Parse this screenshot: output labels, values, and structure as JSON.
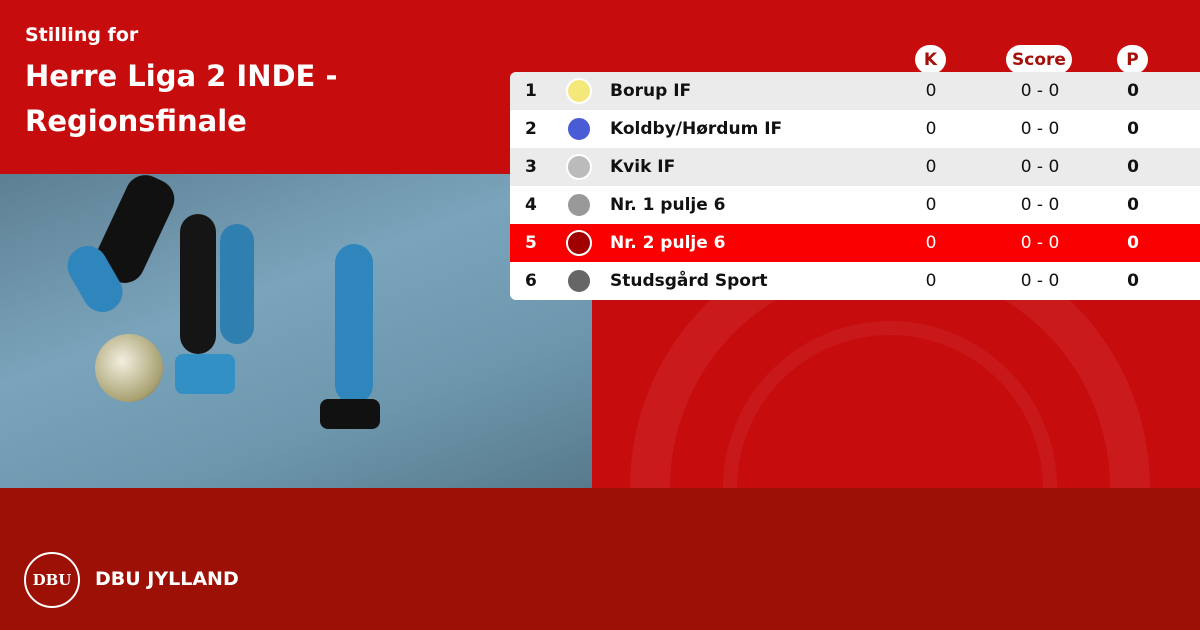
{
  "header": {
    "subtitle": "Stilling for",
    "title": "Herre Liga 2 INDE - Regionsfinale"
  },
  "columns": {
    "k": "K",
    "score": "Score",
    "p": "P"
  },
  "rows": [
    {
      "pos": "1",
      "team": "Borup IF",
      "k": "0",
      "score": "0 - 0",
      "p": "0",
      "logo_color": "#f4e87a"
    },
    {
      "pos": "2",
      "team": "Koldby/Hørdum IF",
      "k": "0",
      "score": "0 - 0",
      "p": "0",
      "logo_color": "#4a5bd6"
    },
    {
      "pos": "3",
      "team": "Kvik IF",
      "k": "0",
      "score": "0 - 0",
      "p": "0",
      "logo_color": "#bbbbbb"
    },
    {
      "pos": "4",
      "team": "Nr. 1 pulje 6",
      "k": "0",
      "score": "0 - 0",
      "p": "0",
      "logo_color": "#999999"
    },
    {
      "pos": "5",
      "team": "Nr. 2 pulje 6",
      "k": "0",
      "score": "0 - 0",
      "p": "0",
      "logo_color": "#a00000",
      "highlighted": true
    },
    {
      "pos": "6",
      "team": "Studsgård Sport",
      "k": "0",
      "score": "0 - 0",
      "p": "0",
      "logo_color": "#666666"
    }
  ],
  "footer": {
    "logo_text": "DBU",
    "brand": "DBU JYLLAND"
  },
  "colors": {
    "top": "#c70c0e",
    "bottom": "#9c1006",
    "highlight": "#fb0000"
  }
}
